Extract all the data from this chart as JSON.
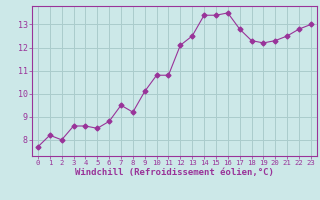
{
  "x": [
    0,
    1,
    2,
    3,
    4,
    5,
    6,
    7,
    8,
    9,
    10,
    11,
    12,
    13,
    14,
    15,
    16,
    17,
    18,
    19,
    20,
    21,
    22,
    23
  ],
  "y": [
    7.7,
    8.2,
    8.0,
    8.6,
    8.6,
    8.5,
    8.8,
    9.5,
    9.2,
    10.1,
    10.8,
    10.8,
    12.1,
    12.5,
    13.4,
    13.4,
    13.5,
    12.8,
    12.3,
    12.2,
    12.3,
    12.5,
    12.8,
    13.0
  ],
  "line_color": "#993399",
  "marker": "D",
  "marker_size": 2.5,
  "bg_color": "#cce8e8",
  "grid_color": "#aacccc",
  "xlabel": "Windchill (Refroidissement éolien,°C)",
  "xlim": [
    -0.5,
    23.5
  ],
  "ylim": [
    7.3,
    13.8
  ],
  "yticks": [
    8,
    9,
    10,
    11,
    12,
    13
  ],
  "xticks": [
    0,
    1,
    2,
    3,
    4,
    5,
    6,
    7,
    8,
    9,
    10,
    11,
    12,
    13,
    14,
    15,
    16,
    17,
    18,
    19,
    20,
    21,
    22,
    23
  ],
  "label_color": "#993399",
  "tick_color": "#993399",
  "axis_color": "#993399",
  "tick_fontsize": 6.0,
  "xlabel_fontsize": 6.5
}
